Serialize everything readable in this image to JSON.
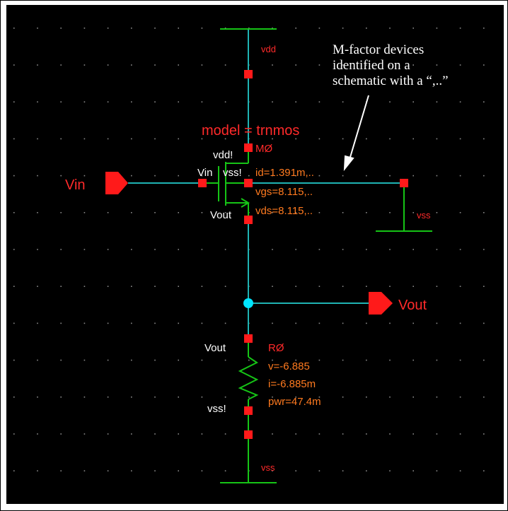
{
  "colors": {
    "background": "#000000",
    "wire": "#1fb3b3",
    "green": "#16c416",
    "pin": "#ff1a1a",
    "label_red": "#ff2a2a",
    "value_orange": "#ff7a1f",
    "white": "#ffffff",
    "junction": "#00e5ff",
    "grid_dot": "#8a8a8a"
  },
  "supplies": {
    "vdd_label": "vdd",
    "vss_right_label": "vss",
    "vss_bottom_label": "vss"
  },
  "ports": {
    "vin": "Vin",
    "vout": "Vout"
  },
  "transistor": {
    "model": "model = trnmos",
    "name": "MØ",
    "term_d": "vdd!",
    "term_g": "Vin",
    "term_b": "vss!",
    "term_s": "Vout",
    "id": "id=1.391m,..",
    "vgs": "vgs=8.115,..",
    "vds": "vds=8.115,.."
  },
  "resistor": {
    "name": "RØ",
    "term_top": "Vout",
    "term_bot": "vss!",
    "v": "v=-6.885",
    "i": "i=-6.885m",
    "pwr": "pwr=47.4m"
  },
  "annotation": {
    "line1": "M-factor devices",
    "line2": "identified on a",
    "line3": "schematic with a “,..”"
  }
}
